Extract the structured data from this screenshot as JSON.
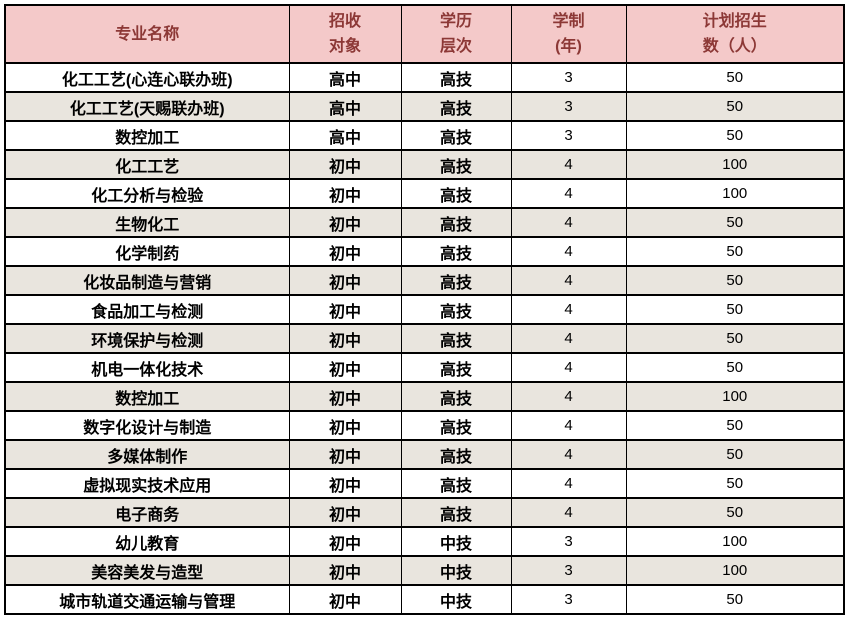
{
  "colors": {
    "header_bg": "#f4c9c9",
    "header_text": "#8c3836",
    "alt_row_bg": "#e9e5de",
    "border": "#000000",
    "body_text": "#000000"
  },
  "table": {
    "columns": [
      {
        "label": "专业名称",
        "label_lines": [
          "专业名称"
        ]
      },
      {
        "label": "招收对象",
        "label_lines": [
          "招收",
          "对象"
        ]
      },
      {
        "label": "学历层次",
        "label_lines": [
          "学历",
          "层次"
        ]
      },
      {
        "label": "学制(年)",
        "label_lines": [
          "学制",
          "(年)"
        ]
      },
      {
        "label": "计划招生数(人)",
        "label_lines": [
          "计划招生",
          "数（人）"
        ]
      }
    ],
    "rows": [
      [
        "化工工艺(心连心联办班)",
        "高中",
        "高技",
        "3",
        "50"
      ],
      [
        "化工工艺(天赐联办班)",
        "高中",
        "高技",
        "3",
        "50"
      ],
      [
        "数控加工",
        "高中",
        "高技",
        "3",
        "50"
      ],
      [
        "化工工艺",
        "初中",
        "高技",
        "4",
        "100"
      ],
      [
        "化工分析与检验",
        "初中",
        "高技",
        "4",
        "100"
      ],
      [
        "生物化工",
        "初中",
        "高技",
        "4",
        "50"
      ],
      [
        "化学制药",
        "初中",
        "高技",
        "4",
        "50"
      ],
      [
        "化妆品制造与营销",
        "初中",
        "高技",
        "4",
        "50"
      ],
      [
        "食品加工与检测",
        "初中",
        "高技",
        "4",
        "50"
      ],
      [
        "环境保护与检测",
        "初中",
        "高技",
        "4",
        "50"
      ],
      [
        "机电一体化技术",
        "初中",
        "高技",
        "4",
        "50"
      ],
      [
        "数控加工",
        "初中",
        "高技",
        "4",
        "100"
      ],
      [
        "数字化设计与制造",
        "初中",
        "高技",
        "4",
        "50"
      ],
      [
        "多媒体制作",
        "初中",
        "高技",
        "4",
        "50"
      ],
      [
        "虚拟现实技术应用",
        "初中",
        "高技",
        "4",
        "50"
      ],
      [
        "电子商务",
        "初中",
        "高技",
        "4",
        "50"
      ],
      [
        "幼儿教育",
        "初中",
        "中技",
        "3",
        "100"
      ],
      [
        "美容美发与造型",
        "初中",
        "中技",
        "3",
        "100"
      ],
      [
        "城市轨道交通运输与管理",
        "初中",
        "中技",
        "3",
        "50"
      ]
    ]
  }
}
